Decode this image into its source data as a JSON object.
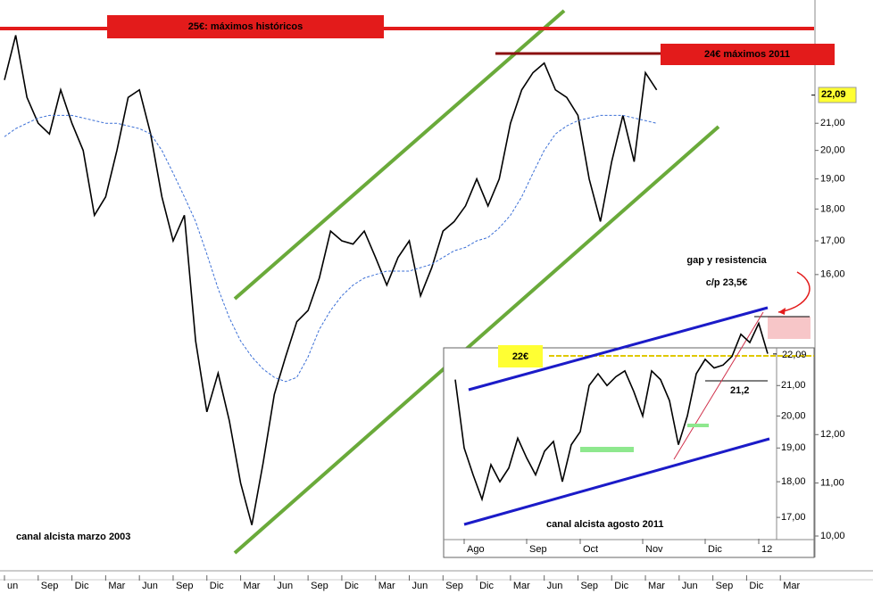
{
  "chart_data": [
    {
      "type": "line",
      "log": true,
      "annotations": [
        "25€: máximos históricos",
        "24€ máximos 2011",
        "gap y resistencia",
        "c/p 23,5€",
        "canal alcista marzo 2003"
      ],
      "xlim": [
        0,
        72
      ],
      "xticks": [
        {
          "value": 0,
          "label": "un"
        },
        {
          "value": 3,
          "label": "Sep"
        },
        {
          "value": 6,
          "label": "Dic"
        },
        {
          "value": 9,
          "label": "Mar"
        },
        {
          "value": 12,
          "label": "Jun"
        },
        {
          "value": 15,
          "label": "Sep"
        },
        {
          "value": 18,
          "label": "Dic"
        },
        {
          "value": 21,
          "label": "Mar"
        },
        {
          "value": 24,
          "label": "Jun"
        },
        {
          "value": 27,
          "label": "Sep"
        },
        {
          "value": 30,
          "label": "Dic"
        },
        {
          "value": 33,
          "label": "Mar"
        },
        {
          "value": 36,
          "label": "Jun"
        },
        {
          "value": 39,
          "label": "Sep"
        },
        {
          "value": 42,
          "label": "Dic"
        },
        {
          "value": 45,
          "label": "Mar"
        },
        {
          "value": 48,
          "label": "Jun"
        },
        {
          "value": 51,
          "label": "Sep"
        },
        {
          "value": 54,
          "label": "Dic"
        },
        {
          "value": 57,
          "label": "Mar"
        },
        {
          "value": 60,
          "label": "Jun"
        },
        {
          "value": 63,
          "label": "Sep"
        },
        {
          "value": 66,
          "label": "Dic"
        },
        {
          "value": 69,
          "label": "Mar"
        }
      ],
      "ylim": [
        10,
        26
      ],
      "yticks": [
        {
          "value": 10,
          "label": "10,00"
        },
        {
          "value": 11,
          "label": "11,00"
        },
        {
          "value": 12,
          "label": "12,00"
        },
        {
          "value": 16,
          "label": "16,00"
        },
        {
          "value": 17,
          "label": "17,00"
        },
        {
          "value": 18,
          "label": "18,00"
        },
        {
          "value": 19,
          "label": "19,00"
        },
        {
          "value": 20,
          "label": "20,00"
        },
        {
          "value": 21,
          "label": "21,00"
        }
      ],
      "last_price": {
        "value": 22.09,
        "label": "22,09"
      },
      "series": [
        {
          "color": "#000000",
          "values": [
            22.7,
            24.6,
            22.0,
            21.0,
            20.6,
            22.3,
            21.0,
            20.0,
            17.8,
            18.4,
            20.0,
            22.0,
            22.3,
            20.6,
            18.4,
            17.0,
            17.8,
            14.2,
            12.5,
            13.4,
            12.3,
            11.0,
            10.2,
            11.4,
            12.9,
            13.8,
            14.7,
            15.0,
            15.9,
            17.3,
            17.0,
            16.9,
            17.3,
            16.5,
            15.7,
            16.5,
            17.0,
            15.4,
            16.2,
            17.3,
            17.6,
            18.1,
            19.0,
            18.1,
            19.0,
            21.0,
            22.3,
            23.0,
            23.4,
            22.3,
            22.0,
            21.3,
            19.0,
            17.6,
            19.6,
            21.3,
            19.6,
            23.0,
            22.3
          ]
        },
        {
          "color": "#3b6fd6",
          "dashed": true,
          "values": [
            20.5,
            20.8,
            21.0,
            21.2,
            21.3,
            21.3,
            21.3,
            21.2,
            21.1,
            21.0,
            21.0,
            20.9,
            20.8,
            20.6,
            20.0,
            19.2,
            18.4,
            17.6,
            16.6,
            15.6,
            14.8,
            14.2,
            13.8,
            13.5,
            13.3,
            13.2,
            13.3,
            13.8,
            14.5,
            15.0,
            15.4,
            15.7,
            15.9,
            16.0,
            16.1,
            16.1,
            16.1,
            16.2,
            16.3,
            16.5,
            16.7,
            16.8,
            17.0,
            17.1,
            17.4,
            17.8,
            18.4,
            19.2,
            20.0,
            20.6,
            20.9,
            21.1,
            21.2,
            21.3,
            21.3,
            21.3,
            21.2,
            21.1,
            21.0
          ]
        }
      ]
    },
    {
      "type": "line",
      "log": true,
      "annotations": [
        "22€",
        "21,2",
        "canal alcista agosto 2011"
      ],
      "xlim": [
        0,
        36
      ],
      "xticks": [
        {
          "value": 1,
          "label": "Ago"
        },
        {
          "value": 8,
          "label": "Sep"
        },
        {
          "value": 14,
          "label": "Oct"
        },
        {
          "value": 21,
          "label": "Nov"
        },
        {
          "value": 28,
          "label": "Dic"
        },
        {
          "value": 34,
          "label": "12"
        }
      ],
      "ylim": [
        16.5,
        22.5
      ],
      "yticks": [
        {
          "value": 17,
          "label": "17,00"
        },
        {
          "value": 18,
          "label": "18,00"
        },
        {
          "value": 19,
          "label": "19,00"
        },
        {
          "value": 20,
          "label": "20,00"
        },
        {
          "value": 21,
          "label": "21,00"
        }
      ],
      "last_price": {
        "value": 22.09,
        "label": "22,09"
      },
      "series": [
        {
          "color": "#000000",
          "values": [
            21.2,
            19.0,
            18.2,
            17.5,
            18.5,
            18.0,
            18.4,
            19.3,
            18.7,
            18.2,
            18.9,
            19.2,
            18.0,
            19.1,
            19.5,
            21.0,
            21.4,
            21.0,
            21.3,
            21.5,
            20.8,
            20.0,
            21.5,
            21.2,
            20.5,
            19.1,
            20.0,
            21.4,
            21.9,
            21.6,
            21.7,
            22.0,
            22.8,
            22.5,
            23.2,
            22.1
          ]
        }
      ]
    }
  ]
}
